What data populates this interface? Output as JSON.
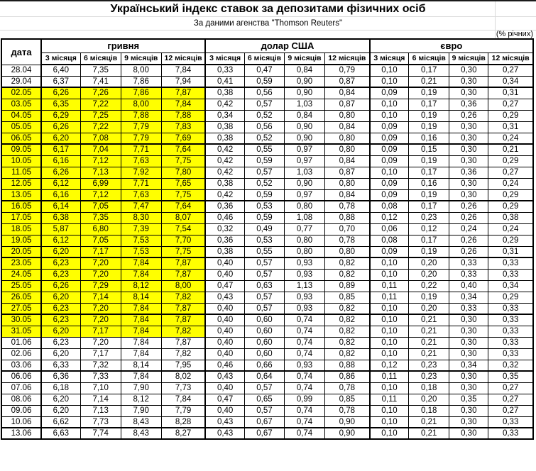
{
  "page": {
    "title": "Український індекс ставок за депозитами фізичних осіб",
    "subtitle": "За даними агенства \"Thomson Reuters\"",
    "units_note": "(% річних)"
  },
  "table": {
    "date_header": "дата",
    "groups": [
      {
        "label": "гривня"
      },
      {
        "label": "долар США"
      },
      {
        "label": "євро"
      }
    ],
    "period_headers": [
      "3 місяця",
      "6 місяців",
      "9 місяців",
      "12 місяців"
    ],
    "highlight_color": "#FFFF00",
    "rows": [
      {
        "date": "28.04",
        "highlight": false,
        "week_end": false,
        "values": [
          "6,40",
          "7,35",
          "8,00",
          "7,84",
          "0,33",
          "0,47",
          "0,84",
          "0,79",
          "0,10",
          "0,17",
          "0,30",
          "0,27"
        ]
      },
      {
        "date": "29.04",
        "highlight": false,
        "week_end": true,
        "values": [
          "6,37",
          "7,41",
          "7,86",
          "7,94",
          "0,41",
          "0,59",
          "0,90",
          "0,87",
          "0,10",
          "0,21",
          "0,30",
          "0,34"
        ]
      },
      {
        "date": "02.05",
        "highlight": true,
        "week_end": false,
        "values": [
          "6,26",
          "7,26",
          "7,86",
          "7,87",
          "0,38",
          "0,56",
          "0,90",
          "0,84",
          "0,09",
          "0,19",
          "0,30",
          "0,31"
        ]
      },
      {
        "date": "03.05",
        "highlight": true,
        "week_end": false,
        "values": [
          "6,35",
          "7,22",
          "8,00",
          "7,84",
          "0,42",
          "0,57",
          "1,03",
          "0,87",
          "0,10",
          "0,17",
          "0,36",
          "0,27"
        ]
      },
      {
        "date": "04.05",
        "highlight": true,
        "week_end": false,
        "values": [
          "6,29",
          "7,25",
          "7,88",
          "7,88",
          "0,34",
          "0,52",
          "0,84",
          "0,80",
          "0,10",
          "0,19",
          "0,26",
          "0,29"
        ]
      },
      {
        "date": "05.05",
        "highlight": true,
        "week_end": false,
        "values": [
          "6,26",
          "7,22",
          "7,79",
          "7,83",
          "0,38",
          "0,56",
          "0,90",
          "0,84",
          "0,09",
          "0,19",
          "0,30",
          "0,31"
        ]
      },
      {
        "date": "06.05",
        "highlight": true,
        "week_end": true,
        "values": [
          "6,20",
          "7,08",
          "7,79",
          "7,69",
          "0,38",
          "0,52",
          "0,90",
          "0,80",
          "0,09",
          "0,16",
          "0,30",
          "0,24"
        ]
      },
      {
        "date": "09.05",
        "highlight": true,
        "week_end": false,
        "values": [
          "6,17",
          "7,04",
          "7,71",
          "7,64",
          "0,42",
          "0,55",
          "0,97",
          "0,80",
          "0,09",
          "0,15",
          "0,30",
          "0,21"
        ]
      },
      {
        "date": "10.05",
        "highlight": true,
        "week_end": false,
        "values": [
          "6,16",
          "7,12",
          "7,63",
          "7,75",
          "0,42",
          "0,59",
          "0,97",
          "0,84",
          "0,09",
          "0,19",
          "0,30",
          "0,29"
        ]
      },
      {
        "date": "11.05",
        "highlight": true,
        "week_end": false,
        "values": [
          "6,26",
          "7,13",
          "7,92",
          "7,80",
          "0,42",
          "0,57",
          "1,03",
          "0,87",
          "0,10",
          "0,17",
          "0,36",
          "0,27"
        ]
      },
      {
        "date": "12.05",
        "highlight": true,
        "week_end": false,
        "values": [
          "6,12",
          "6,99",
          "7,71",
          "7,65",
          "0,38",
          "0,52",
          "0,90",
          "0,80",
          "0,09",
          "0,16",
          "0,30",
          "0,24"
        ]
      },
      {
        "date": "13.05",
        "highlight": true,
        "week_end": true,
        "values": [
          "6,16",
          "7,12",
          "7,63",
          "7,75",
          "0,42",
          "0,59",
          "0,97",
          "0,84",
          "0,09",
          "0,19",
          "0,30",
          "0,29"
        ]
      },
      {
        "date": "16.05",
        "highlight": true,
        "week_end": false,
        "values": [
          "6,14",
          "7,05",
          "7,47",
          "7,64",
          "0,36",
          "0,53",
          "0,80",
          "0,78",
          "0,08",
          "0,17",
          "0,26",
          "0,29"
        ]
      },
      {
        "date": "17.05",
        "highlight": true,
        "week_end": false,
        "values": [
          "6,38",
          "7,35",
          "8,30",
          "8,07",
          "0,46",
          "0,59",
          "1,08",
          "0,88",
          "0,12",
          "0,23",
          "0,26",
          "0,38"
        ]
      },
      {
        "date": "18.05",
        "highlight": true,
        "week_end": false,
        "values": [
          "5,87",
          "6,80",
          "7,39",
          "7,54",
          "0,32",
          "0,49",
          "0,77",
          "0,70",
          "0,06",
          "0,12",
          "0,24",
          "0,24"
        ]
      },
      {
        "date": "19.05",
        "highlight": true,
        "week_end": false,
        "values": [
          "6,12",
          "7,05",
          "7,53",
          "7,70",
          "0,36",
          "0,53",
          "0,80",
          "0,78",
          "0,08",
          "0,17",
          "0,26",
          "0,29"
        ]
      },
      {
        "date": "20.05",
        "highlight": true,
        "week_end": true,
        "values": [
          "6,20",
          "7,17",
          "7,53",
          "7,75",
          "0,38",
          "0,55",
          "0,80",
          "0,80",
          "0,09",
          "0,19",
          "0,26",
          "0,31"
        ]
      },
      {
        "date": "23.05",
        "highlight": true,
        "week_end": false,
        "values": [
          "6,23",
          "7,20",
          "7,84",
          "7,87",
          "0,40",
          "0,57",
          "0,93",
          "0,82",
          "0,10",
          "0,20",
          "0,33",
          "0,33"
        ]
      },
      {
        "date": "24.05",
        "highlight": true,
        "week_end": false,
        "values": [
          "6,23",
          "7,20",
          "7,84",
          "7,87",
          "0,40",
          "0,57",
          "0,93",
          "0,82",
          "0,10",
          "0,20",
          "0,33",
          "0,33"
        ]
      },
      {
        "date": "25.05",
        "highlight": true,
        "week_end": false,
        "values": [
          "6,26",
          "7,29",
          "8,12",
          "8,00",
          "0,47",
          "0,63",
          "1,13",
          "0,89",
          "0,11",
          "0,22",
          "0,40",
          "0,34"
        ]
      },
      {
        "date": "26.05",
        "highlight": true,
        "week_end": false,
        "values": [
          "6,20",
          "7,14",
          "8,14",
          "7,82",
          "0,43",
          "0,57",
          "0,93",
          "0,85",
          "0,11",
          "0,19",
          "0,34",
          "0,29"
        ]
      },
      {
        "date": "27.05",
        "highlight": true,
        "week_end": true,
        "values": [
          "6,23",
          "7,20",
          "7,84",
          "7,87",
          "0,40",
          "0,57",
          "0,93",
          "0,82",
          "0,10",
          "0,20",
          "0,33",
          "0,33"
        ]
      },
      {
        "date": "30.05",
        "highlight": true,
        "week_end": false,
        "values": [
          "6,23",
          "7,20",
          "7,84",
          "7,87",
          "0,40",
          "0,60",
          "0,74",
          "0,82",
          "0,10",
          "0,21",
          "0,30",
          "0,33"
        ]
      },
      {
        "date": "31.05",
        "highlight": true,
        "week_end": false,
        "values": [
          "6,20",
          "7,17",
          "7,84",
          "7,82",
          "0,40",
          "0,60",
          "0,74",
          "0,82",
          "0,10",
          "0,21",
          "0,30",
          "0,33"
        ]
      },
      {
        "date": "01.06",
        "highlight": false,
        "week_end": false,
        "values": [
          "6,23",
          "7,20",
          "7,84",
          "7,87",
          "0,40",
          "0,60",
          "0,74",
          "0,82",
          "0,10",
          "0,21",
          "0,30",
          "0,33"
        ]
      },
      {
        "date": "02.06",
        "highlight": false,
        "week_end": false,
        "values": [
          "6,20",
          "7,17",
          "7,84",
          "7,82",
          "0,40",
          "0,60",
          "0,74",
          "0,82",
          "0,10",
          "0,21",
          "0,30",
          "0,33"
        ]
      },
      {
        "date": "03.06",
        "highlight": false,
        "week_end": true,
        "values": [
          "6,33",
          "7,32",
          "8,14",
          "7,95",
          "0,46",
          "0,66",
          "0,93",
          "0,88",
          "0,12",
          "0,23",
          "0,34",
          "0,32"
        ]
      },
      {
        "date": "06.06",
        "highlight": false,
        "week_end": false,
        "values": [
          "6,36",
          "7,33",
          "7,84",
          "8,02",
          "0,43",
          "0,64",
          "0,74",
          "0,86",
          "0,11",
          "0,23",
          "0,30",
          "0,35"
        ]
      },
      {
        "date": "07.06",
        "highlight": false,
        "week_end": false,
        "values": [
          "6,18",
          "7,10",
          "7,90",
          "7,73",
          "0,40",
          "0,57",
          "0,74",
          "0,78",
          "0,10",
          "0,18",
          "0,30",
          "0,27"
        ]
      },
      {
        "date": "08.06",
        "highlight": false,
        "week_end": false,
        "values": [
          "6,20",
          "7,14",
          "8,12",
          "7,84",
          "0,47",
          "0,65",
          "0,99",
          "0,85",
          "0,11",
          "0,20",
          "0,35",
          "0,27"
        ]
      },
      {
        "date": "09.06",
        "highlight": false,
        "week_end": false,
        "values": [
          "6,20",
          "7,13",
          "7,90",
          "7,79",
          "0,40",
          "0,57",
          "0,74",
          "0,78",
          "0,10",
          "0,18",
          "0,30",
          "0,27"
        ]
      },
      {
        "date": "10.06",
        "highlight": false,
        "week_end": true,
        "values": [
          "6,62",
          "7,73",
          "8,43",
          "8,28",
          "0,43",
          "0,67",
          "0,74",
          "0,90",
          "0,10",
          "0,21",
          "0,30",
          "0,33"
        ]
      },
      {
        "date": "13.06",
        "highlight": false,
        "week_end": false,
        "values": [
          "6,63",
          "7,74",
          "8,43",
          "8,27",
          "0,43",
          "0,67",
          "0,74",
          "0,90",
          "0,10",
          "0,21",
          "0,30",
          "0,33"
        ]
      }
    ]
  }
}
